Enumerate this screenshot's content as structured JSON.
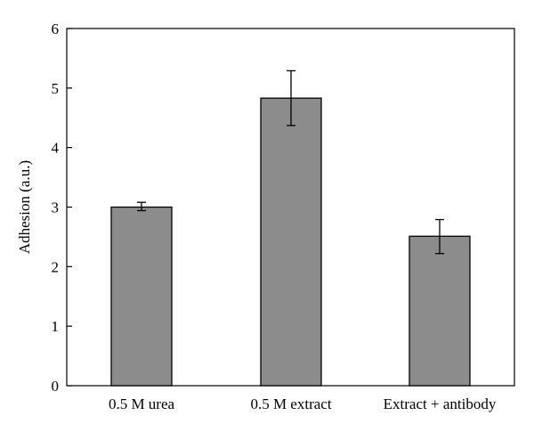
{
  "chart_data": {
    "type": "bar",
    "title": "",
    "xlabel": "",
    "ylabel": "Adhesion (a.u.)",
    "categories": [
      "0.5 M urea",
      "0.5 M extract",
      "Extract + antibody"
    ],
    "values": [
      3.0,
      4.83,
      2.51
    ],
    "error_low": [
      2.94,
      4.37,
      2.22
    ],
    "error_high": [
      3.08,
      5.29,
      2.79
    ],
    "ylim": [
      0,
      6
    ],
    "yticks": [
      "0",
      "1",
      "2",
      "3",
      "4",
      "5",
      "6"
    ],
    "grid": false,
    "legend": "none",
    "colors": {
      "bar_fill": "#8c8c8c",
      "bar_stroke": "#000000",
      "axis": "#000000"
    }
  }
}
